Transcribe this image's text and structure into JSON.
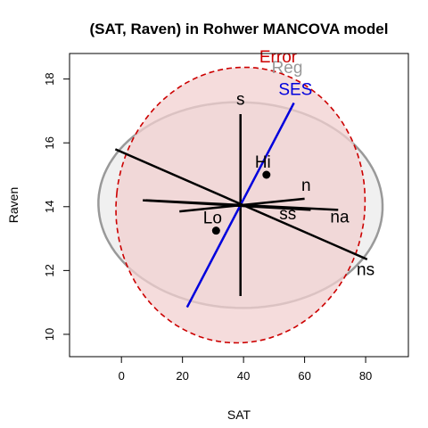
{
  "chart_data": {
    "type": "scatter",
    "title": "(SAT, Raven) in Rohwer MANCOVA model",
    "xlabel": "SAT",
    "ylabel": "Raven",
    "xlim": [
      -17,
      94
    ],
    "ylim": [
      9.3,
      18.8
    ],
    "x_ticks": [
      0,
      20,
      40,
      60,
      80
    ],
    "y_ticks": [
      10,
      12,
      14,
      16,
      18
    ],
    "x_tick_labels": [
      "0",
      "20",
      "40",
      "60",
      "80"
    ],
    "y_tick_labels": [
      "10",
      "12",
      "14",
      "16",
      "18"
    ],
    "grid": false,
    "center": {
      "x": 39,
      "y": 14.05
    },
    "ellipses": [
      {
        "label": "Reg",
        "color": "#999999",
        "fill": "#f0f0f0",
        "style": "solid",
        "cx": 39,
        "cy": 14.05,
        "points": [
          [
            -2.5,
            15.6
          ],
          [
            79.0,
            12.4
          ],
          [
            16.5,
            11.25
          ],
          [
            61.5,
            16.85
          ]
        ]
      },
      {
        "label": "Error",
        "color": "#cc0000",
        "fill": "#f2d0d0",
        "style": "dashed",
        "cx": 39,
        "cy": 14.05,
        "points": [
          [
            -1.5,
            14.45
          ],
          [
            79.5,
            13.65
          ],
          [
            34.0,
            9.75
          ],
          [
            44.0,
            18.35
          ]
        ]
      }
    ],
    "vectors": [
      {
        "label": "s",
        "x1": 39,
        "y1": 11.2,
        "x2": 39,
        "y2": 16.9,
        "color": "#000000",
        "lx": 39,
        "ly": 17.2
      },
      {
        "label": "SES",
        "x1": 21.5,
        "y1": 10.85,
        "x2": 56.5,
        "y2": 17.25,
        "color": "#0000dd",
        "lx": 57,
        "ly": 17.5
      },
      {
        "label": "n",
        "x1": 19,
        "y1": 13.85,
        "x2": 60,
        "y2": 14.25,
        "color": "#000000",
        "lx": 60.5,
        "ly": 14.5
      },
      {
        "label": "ss",
        "x1": 7,
        "y1": 14.2,
        "x2": 62,
        "y2": 13.9,
        "color": "#000000",
        "lx": 54.5,
        "ly": 13.6
      },
      {
        "label": "na",
        "x1": 8,
        "y1": 14.2,
        "x2": 71,
        "y2": 13.9,
        "color": "#000000",
        "lx": 71.5,
        "ly": 13.5
      },
      {
        "label": "ns",
        "x1": -2,
        "y1": 15.8,
        "x2": 80.5,
        "y2": 12.35,
        "color": "#000000",
        "lx": 80,
        "ly": 11.85
      }
    ],
    "points": [
      {
        "label": "Hi",
        "x": 47.5,
        "y": 15.0
      },
      {
        "label": "Lo",
        "x": 31.0,
        "y": 13.25
      }
    ]
  }
}
